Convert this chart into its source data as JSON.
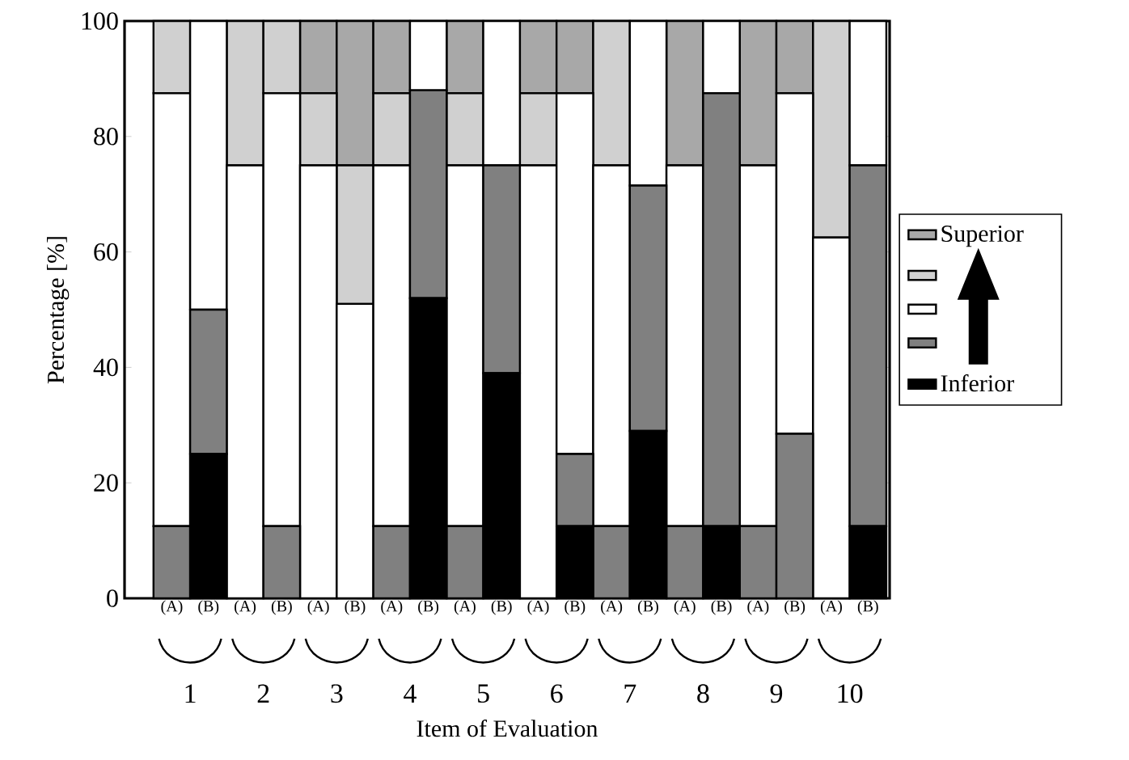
{
  "chart_data": {
    "type": "bar",
    "stacked": true,
    "xlabel": "Item of Evaluation",
    "ylabel": "Percentage [%]",
    "categories": [
      "(A)",
      "(B)",
      "(A)",
      "(B)",
      "(A)",
      "(B)",
      "(A)",
      "(B)",
      "(A)",
      "(B)",
      "(A)",
      "(B)",
      "(A)",
      "(B)",
      "(A)",
      "(B)",
      "(A)",
      "(B)",
      "(A)",
      "(B)"
    ],
    "annotations": [
      "1",
      "2",
      "3",
      "4",
      "5",
      "6",
      "7",
      "8",
      "9",
      "10"
    ],
    "ylim": [
      0,
      100
    ],
    "yticks": [
      0,
      20,
      40,
      60,
      80,
      100
    ],
    "legend": "right",
    "series": [
      {
        "name": "Inferior",
        "color": "#000000",
        "values": [
          0,
          25,
          0,
          0,
          0,
          0,
          0,
          52,
          0,
          39,
          0,
          12.5,
          0,
          29,
          0,
          12.5,
          0,
          0,
          0,
          12.5
        ]
      },
      {
        "color": "#808080",
        "values": [
          12.5,
          25,
          0,
          12.5,
          0,
          0,
          12.5,
          36,
          12.5,
          36,
          0,
          12.5,
          12.5,
          42.5,
          12.5,
          75,
          12.5,
          28.5,
          0,
          62.5
        ]
      },
      {
        "color": "#ffffff",
        "values": [
          75,
          50,
          75,
          75,
          75,
          51,
          62.5,
          12,
          62.5,
          25,
          75,
          62.5,
          62.5,
          28.5,
          62.5,
          12.5,
          62.5,
          59,
          62.5,
          25
        ]
      },
      {
        "color": "#d0d0d0",
        "values": [
          12.5,
          0,
          25,
          12.5,
          12.5,
          24,
          12.5,
          0,
          12.5,
          0,
          12.5,
          0,
          25,
          0,
          0,
          0,
          0,
          0,
          37.5,
          0
        ]
      },
      {
        "name": "Superior",
        "color": "#a8a8a8",
        "values": [
          0,
          0,
          0,
          0,
          12.5,
          25,
          12.5,
          0,
          12.5,
          0,
          12.5,
          12.5,
          0,
          0,
          25,
          0,
          25,
          12.5,
          0,
          0
        ]
      }
    ]
  }
}
